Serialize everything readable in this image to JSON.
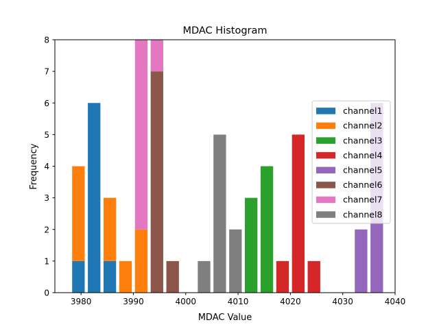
{
  "chart_data": {
    "type": "bar",
    "stacked": true,
    "title": "MDAC Histogram",
    "xlabel": "MDAC Value",
    "ylabel": "Frequency",
    "xlim": [
      3975,
      4040
    ],
    "ylim": [
      0,
      8
    ],
    "xticks": [
      3980,
      3990,
      4000,
      4010,
      4020,
      4030,
      4040
    ],
    "yticks": [
      0,
      1,
      2,
      3,
      4,
      5,
      6,
      7,
      8
    ],
    "bar_width": 2.4,
    "legend_position": "center-right",
    "series": [
      {
        "name": "channel1",
        "color": "#1f77b4",
        "bars": [
          {
            "x": 3979.5,
            "value": 1
          },
          {
            "x": 3982.5,
            "value": 6
          },
          {
            "x": 3985.5,
            "value": 1
          }
        ]
      },
      {
        "name": "channel2",
        "color": "#ff7f0e",
        "bars": [
          {
            "x": 3979.5,
            "value": 3
          },
          {
            "x": 3985.5,
            "value": 2
          },
          {
            "x": 3988.5,
            "value": 1
          },
          {
            "x": 3991.5,
            "value": 2
          }
        ]
      },
      {
        "name": "channel3",
        "color": "#2ca02c",
        "bars": [
          {
            "x": 4012.5,
            "value": 3
          },
          {
            "x": 4015.5,
            "value": 4
          }
        ]
      },
      {
        "name": "channel4",
        "color": "#d62728",
        "bars": [
          {
            "x": 4018.5,
            "value": 1
          },
          {
            "x": 4021.5,
            "value": 5
          },
          {
            "x": 4024.5,
            "value": 1
          }
        ]
      },
      {
        "name": "channel5",
        "color": "#9467bd",
        "bars": [
          {
            "x": 4033.5,
            "value": 2
          },
          {
            "x": 4036.5,
            "value": 6
          }
        ]
      },
      {
        "name": "channel6",
        "color": "#8c564b",
        "bars": [
          {
            "x": 3994.5,
            "value": 7
          },
          {
            "x": 3997.5,
            "value": 1
          }
        ]
      },
      {
        "name": "channel7",
        "color": "#e377c2",
        "bars": [
          {
            "x": 3991.5,
            "value": 6
          },
          {
            "x": 3994.5,
            "value": 1
          }
        ]
      },
      {
        "name": "channel8",
        "color": "#7f7f7f",
        "bars": [
          {
            "x": 4003.5,
            "value": 1
          },
          {
            "x": 4006.5,
            "value": 5
          },
          {
            "x": 4009.5,
            "value": 2
          }
        ]
      }
    ]
  }
}
